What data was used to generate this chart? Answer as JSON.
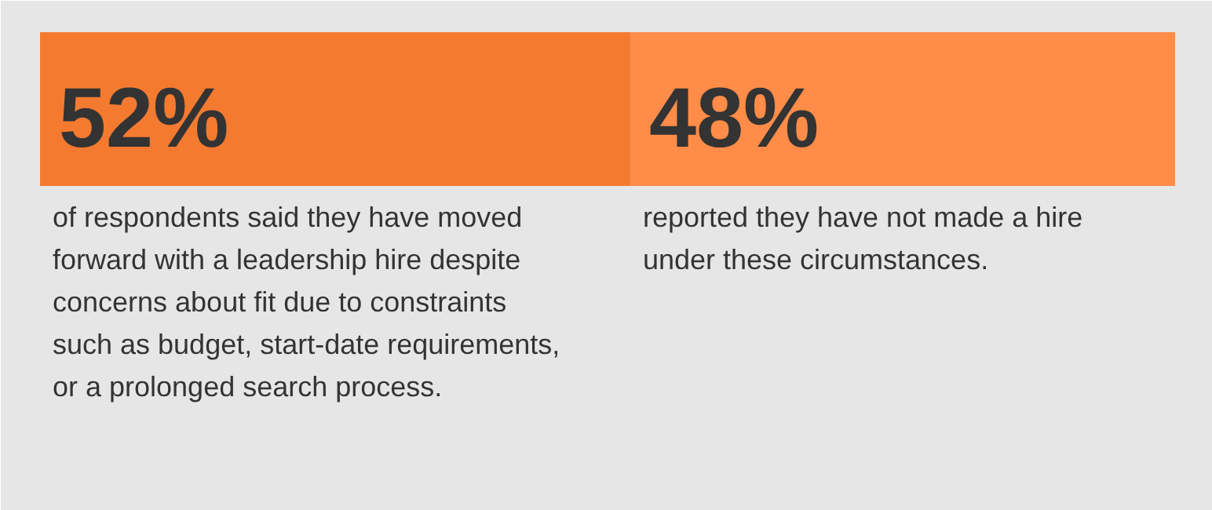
{
  "chart_data": {
    "type": "bar",
    "orientation": "horizontal",
    "stacked": true,
    "categories": [
      null
    ],
    "xlim": [
      0,
      100
    ],
    "tick_labels": false,
    "series": [
      {
        "color": "#f47a30",
        "values": [
          52
        ],
        "value_labels": [
          "52%"
        ]
      },
      {
        "color": "#ff8c48",
        "values": [
          48
        ],
        "value_labels": [
          "48%"
        ]
      }
    ],
    "annotations": [
      "of respondents said they have moved forward with a leadership hire despite concerns about fit due to constraints such as budget, start-date requirements, or a prolonged search process.",
      "reported they have not made a hire under these circumstances."
    ]
  }
}
